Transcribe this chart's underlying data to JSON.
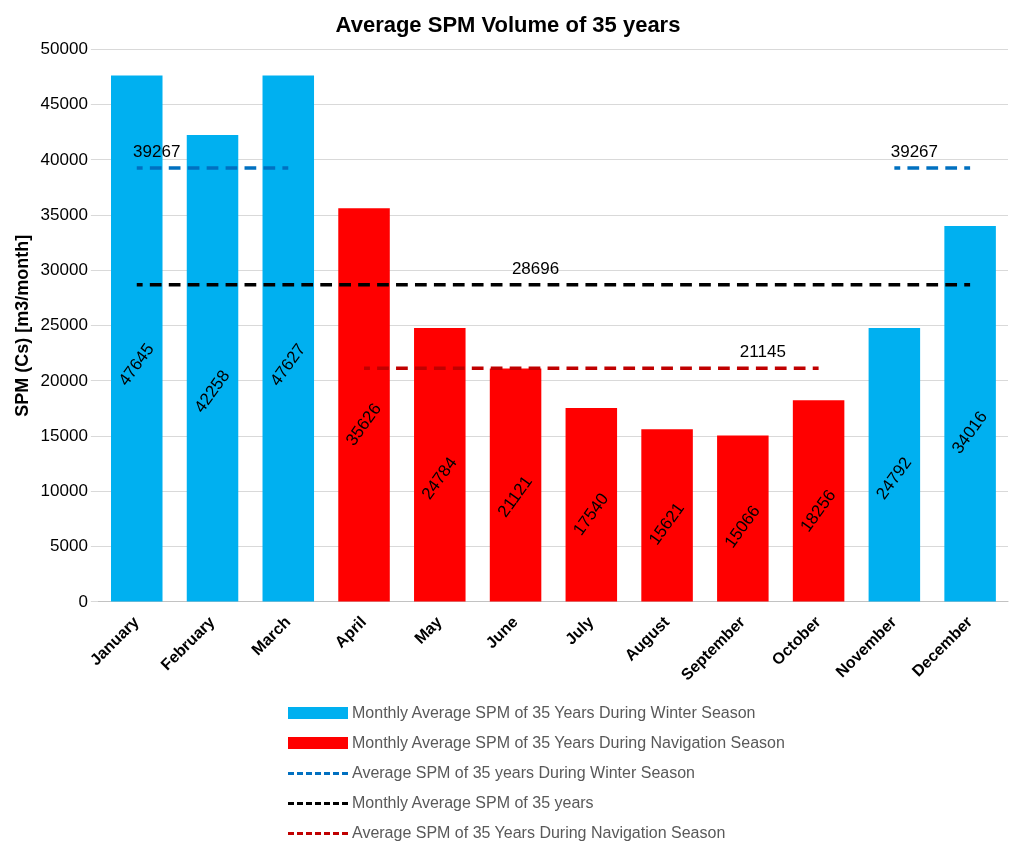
{
  "chart_data": {
    "type": "bar",
    "title": "Average SPM Volume of 35 years",
    "ylabel": "SPM (Cs) [m3/month]",
    "categories": [
      "January",
      "February",
      "March",
      "April",
      "May",
      "June",
      "July",
      "August",
      "September",
      "October",
      "November",
      "December"
    ],
    "series": [
      {
        "name": "Monthly Average SPM of 35 Years During Winter Season",
        "color": "#00b0f0",
        "values": [
          47645,
          42258,
          47627,
          null,
          null,
          null,
          null,
          null,
          null,
          null,
          24792,
          34016
        ],
        "value_labels": [
          "47645",
          "42258",
          "47627",
          null,
          null,
          null,
          null,
          null,
          null,
          null,
          "24792",
          "34016"
        ]
      },
      {
        "name": "Monthly Average SPM of 35 Years During Navigation Season",
        "color": "#ff0000",
        "values": [
          null,
          null,
          null,
          35626,
          24784,
          21121,
          17540,
          15621,
          15066,
          18256,
          null,
          null
        ],
        "value_labels": [
          null,
          null,
          null,
          "35626",
          "24784",
          "21121",
          "17540",
          "15621",
          "15066",
          "18256",
          null,
          null
        ]
      },
      {
        "name": "Average SPM of 35 years During Winter Season",
        "type": "line",
        "color": "#0070c0",
        "line_style": "dashed",
        "values": [
          39267,
          39267,
          39267,
          null,
          null,
          null,
          null,
          null,
          null,
          null,
          39267,
          39267
        ],
        "value_labels": [
          "39267",
          null,
          null,
          null,
          null,
          null,
          null,
          null,
          null,
          null,
          "39267",
          null
        ]
      },
      {
        "name": "Monthly Average SPM of 35 years",
        "type": "line",
        "color": "#000000",
        "line_style": "dashed",
        "values": [
          28696,
          28696,
          28696,
          28696,
          28696,
          28696,
          28696,
          28696,
          28696,
          28696,
          28696,
          28696
        ],
        "value_labels": [
          null,
          null,
          null,
          null,
          null,
          "28696",
          null,
          null,
          null,
          null,
          null,
          null
        ]
      },
      {
        "name": "Average SPM of 35 Years During Navigation Season",
        "type": "line",
        "color": "#c00000",
        "line_style": "dashed",
        "values": [
          null,
          null,
          null,
          21145,
          21145,
          21145,
          21145,
          21145,
          21145,
          21145,
          null,
          null
        ],
        "value_labels": [
          null,
          null,
          null,
          null,
          null,
          null,
          null,
          null,
          "21145",
          null,
          null,
          null
        ]
      }
    ],
    "ylim": [
      0,
      50000
    ],
    "yticks": [
      0,
      5000,
      10000,
      15000,
      20000,
      25000,
      30000,
      35000,
      40000,
      45000,
      50000
    ],
    "grid": "y",
    "legend": "bottom",
    "marker": "none"
  }
}
